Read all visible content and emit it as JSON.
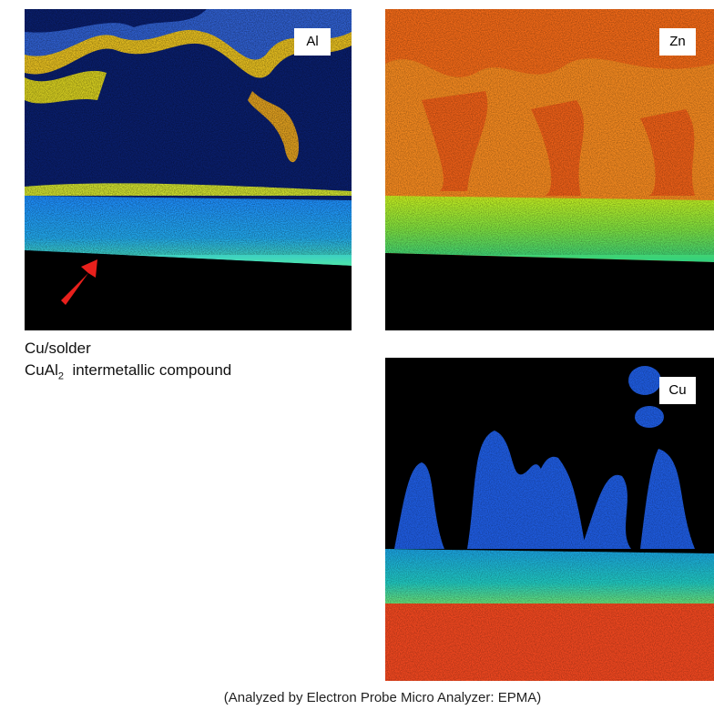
{
  "panels": [
    {
      "label": "Al"
    },
    {
      "label": "Zn"
    },
    {
      "label": "Cu"
    }
  ],
  "legend": {
    "line1": "Cu/solder",
    "line2": {
      "formula": "CuAl",
      "subscript": "2",
      "text": "intermetallic compound"
    }
  },
  "footer": "(Analyzed by Electron Probe Micro Analyzer: EPMA)"
}
